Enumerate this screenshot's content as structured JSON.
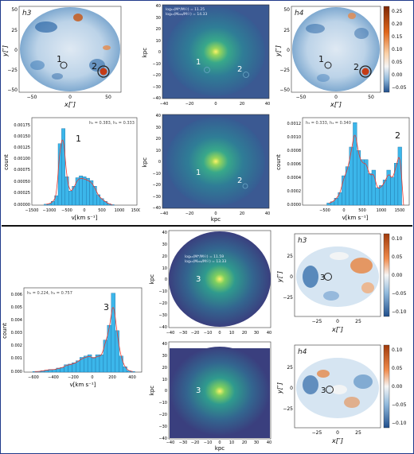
{
  "top": {
    "map_h3": {
      "label": "h3",
      "xlabel": "x[″]",
      "ylabel": "y[″]",
      "xticks": [
        "−50",
        "0",
        "50"
      ],
      "yticks": [
        "50",
        "25",
        "0",
        "−25",
        "−50"
      ],
      "markers": [
        "1",
        "2"
      ]
    },
    "map_h4": {
      "label": "h4",
      "xlabel": "x[″]",
      "ylabel": "y[″]",
      "xticks": [
        "−50",
        "0",
        "50"
      ],
      "yticks": [
        "50",
        "25",
        "0",
        "−25",
        "−50"
      ],
      "markers": [
        "1",
        "2"
      ],
      "colorbar": [
        "0.25",
        "0.20",
        "0.15",
        "0.10",
        "0.05",
        "0.00",
        "−0.05"
      ]
    },
    "density_1": {
      "xlabel": "",
      "ylabel": "kpc",
      "xticks": [
        "−40",
        "−20",
        "0",
        "20",
        "40"
      ],
      "yticks": [
        "40",
        "30",
        "20",
        "10",
        "0",
        "−10",
        "−20",
        "−30",
        "−40"
      ],
      "mass_star": "log₁₀(M*/M☉) = 11.25",
      "mass_halo": "log₁₀(M₂₀₀/M☉) = 14.33",
      "markers": [
        "1",
        "2"
      ]
    },
    "density_2": {
      "xlabel": "kpc",
      "ylabel": "kpc",
      "xticks": [
        "−40",
        "−20",
        "0",
        "20",
        "40"
      ],
      "yticks": [
        "40",
        "30",
        "20",
        "10",
        "0",
        "−10",
        "−20",
        "−30",
        "−40"
      ],
      "markers": [
        "1",
        "2"
      ]
    },
    "hist_1": {
      "annot": "h₃ = 0.383,  h₄ = 0.333",
      "number": "1",
      "xlabel": "v[km s⁻¹]",
      "ylabel": "count",
      "xticks": [
        "−1500",
        "−1000",
        "−500",
        "0",
        "500",
        "1000",
        "1500"
      ],
      "yticks": [
        "0.00175",
        "0.00150",
        "0.00125",
        "0.00100",
        "0.00075",
        "0.00050",
        "0.00025",
        "0.00000"
      ]
    },
    "hist_2": {
      "annot": "h₃ = 0.333,  h₄ = 0.340",
      "number": "2",
      "xlabel": "v[km s⁻¹]",
      "ylabel": "count",
      "xticks": [
        "−500",
        "0",
        "500",
        "1000",
        "1500"
      ],
      "yticks": [
        "0.0012",
        "0.0010",
        "0.0008",
        "0.0006",
        "0.0004",
        "0.0002",
        "0.0000"
      ]
    }
  },
  "bottom": {
    "hist_3": {
      "annot": "h₃ = 0.224,  h₄ = 0.757",
      "number": "3",
      "xlabel": "v[km s⁻¹]",
      "ylabel": "count",
      "xticks": [
        "−600",
        "−400",
        "−200",
        "0",
        "200",
        "400"
      ],
      "yticks": [
        "0.006",
        "0.005",
        "0.004",
        "0.003",
        "0.002",
        "0.001",
        "0.000"
      ]
    },
    "density_3": {
      "xlabel": "",
      "ylabel": "kpc",
      "xticks": [
        "−40",
        "−30",
        "−20",
        "−10",
        "0",
        "10",
        "20",
        "30",
        "40"
      ],
      "yticks": [
        "40",
        "30",
        "20",
        "10",
        "0",
        "−10",
        "−20",
        "−30",
        "−40"
      ],
      "mass_star": "log₁₀(M*/M☉) = 11.59",
      "mass_halo": "log₁₀(M₂₀₀/M☉) = 13.33",
      "marker": "3"
    },
    "density_4": {
      "xlabel": "kpc",
      "ylabel": "kpc",
      "xticks": [
        "−40",
        "−30",
        "−20",
        "−10",
        "0",
        "10",
        "20",
        "30",
        "40"
      ],
      "yticks": [
        "40",
        "30",
        "20",
        "10",
        "0",
        "−10",
        "−20",
        "−30",
        "−40"
      ],
      "marker": "3"
    },
    "map_h3b": {
      "label": "h3",
      "xlabel": "x[″]",
      "ylabel": "y[″]",
      "xticks": [
        "−25",
        "0",
        "25"
      ],
      "yticks": [
        "25",
        "0",
        "−25"
      ],
      "marker": "3",
      "colorbar": [
        "0.10",
        "0.05",
        "0.00",
        "−0.05",
        "−0.10"
      ]
    },
    "map_h4b": {
      "label": "h4",
      "xlabel": "x[″]",
      "ylabel": "y[″]",
      "xticks": [
        "−25",
        "0",
        "25"
      ],
      "yticks": [
        "25",
        "0",
        "−25"
      ],
      "marker": "3",
      "colorbar": [
        "0.10",
        "0.05",
        "0.00",
        "−0.05",
        "−0.10"
      ]
    }
  },
  "colors": {
    "bar": "#3bb6ea",
    "bar_edge": "#1d6fa3",
    "fit": "#e8392f",
    "frame": "#1f3a8a",
    "bg_density": "#3b4f8c"
  },
  "chart_data": [
    {
      "type": "bar",
      "id": "hist_1",
      "xlabel": "v[km s⁻¹]",
      "ylabel": "count",
      "xlim": [
        -1500,
        1500
      ],
      "ylim": [
        0,
        0.00185
      ],
      "x": [
        -1100,
        -1000,
        -900,
        -800,
        -700,
        -600,
        -500,
        -400,
        -300,
        -200,
        -100,
        0,
        100,
        200,
        300,
        400,
        500,
        600,
        700,
        800
      ],
      "values": [
        2e-05,
        3e-05,
        8e-05,
        0.0002,
        0.0013,
        0.00162,
        0.0006,
        0.0003,
        0.0004,
        0.00058,
        0.00062,
        0.0006,
        0.00057,
        0.00052,
        0.0004,
        0.00022,
        0.00014,
        8e-05,
        3e-05,
        1e-05
      ]
    },
    {
      "type": "bar",
      "id": "hist_2",
      "xlabel": "v[km s⁻¹]",
      "ylabel": "count",
      "xlim": [
        -1300,
        1550
      ],
      "ylim": [
        0,
        0.00125
      ],
      "x": [
        -600,
        -500,
        -400,
        -300,
        -200,
        -100,
        0,
        100,
        200,
        300,
        400,
        500,
        600,
        700,
        800,
        900,
        1000,
        1100,
        1200,
        1300,
        1400
      ],
      "values": [
        3e-05,
        5e-05,
        0.0001,
        0.00018,
        0.00042,
        0.00055,
        0.00083,
        0.00118,
        0.00078,
        0.00065,
        0.00065,
        0.00045,
        0.0005,
        0.00025,
        0.00028,
        0.00036,
        0.0005,
        0.0004,
        0.0006,
        0.00083,
        0.0
      ]
    },
    {
      "type": "bar",
      "id": "hist_3",
      "xlabel": "v[km s⁻¹]",
      "ylabel": "count",
      "xlim": [
        -650,
        550
      ],
      "ylim": [
        0,
        0.0063
      ],
      "x": [
        -540,
        -500,
        -460,
        -420,
        -380,
        -340,
        -300,
        -260,
        -220,
        -180,
        -140,
        -100,
        -60,
        -20,
        20,
        60,
        100,
        140,
        180,
        220,
        260,
        300,
        340,
        380,
        420,
        460
      ],
      "values": [
        5e-05,
        5e-05,
        0.0001,
        0.00015,
        0.0002,
        0.0002,
        0.0003,
        0.00035,
        0.00055,
        0.0006,
        0.0007,
        0.00085,
        0.0011,
        0.0012,
        0.0013,
        0.0011,
        0.0013,
        0.0013,
        0.0024,
        0.0035,
        0.0059,
        0.0031,
        0.0012,
        0.0004,
        0.0001,
        5e-05
      ]
    }
  ]
}
